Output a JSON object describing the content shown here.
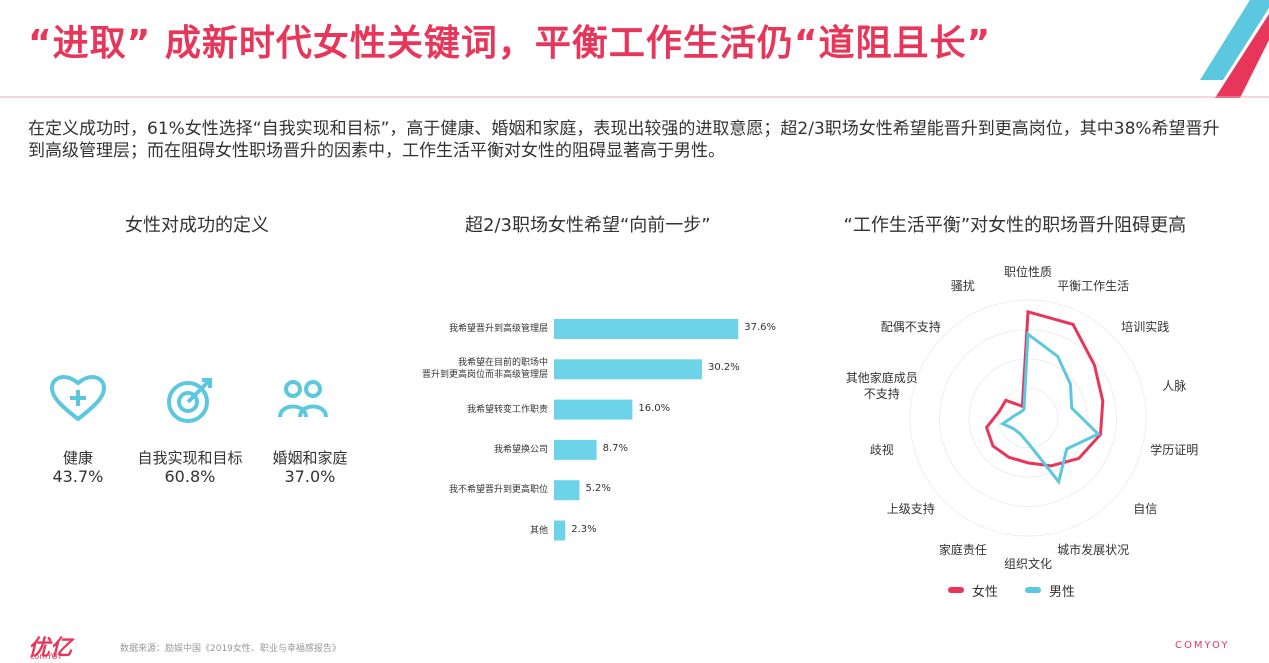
{
  "title": "“进取” 成新时代女性关键词，平衡工作生活仍“道阻且长”",
  "description": "在定义成功时，61%女性选择“自我实现和目标”，高于健康、婚姻和家庭，表现出较强的进取意愿；超2/3职场女性希望能晋升到更高岗位，其中38%希望晋升到高级管理层；而在阻碍女性职场晋升的因素中，工作生活平衡对女性的阻碍显著高于男性。",
  "footer": {
    "logo": "优亿",
    "logo_sub": "comYOY",
    "source": "数据来源：励娱中国《2019女性、职业与幸福感报告》",
    "brand": "COMYOY"
  },
  "chart_data": [
    {
      "type": "stat",
      "title": "女性对成功的定义",
      "color": "#5bc8e0",
      "categories": [
        "健康",
        "自我实现和目标",
        "婚姻和家庭"
      ],
      "values": [
        43.7,
        60.8,
        37.0
      ],
      "value_labels": [
        "43.7%",
        "60.8%",
        "37.0%"
      ]
    },
    {
      "type": "hbar",
      "title": "超2/3职场女性希望“向前一步”",
      "color": "#6dd3e8",
      "categories": [
        "我希望晋升到高级管理层",
        "我希望在目前的职场中\n晋升到更高岗位而非高级管理层",
        "我希望转变工作职责",
        "我希望换公司",
        "我不希望晋升到更高职位",
        "其他"
      ],
      "values": [
        37.6,
        30.2,
        16.0,
        8.7,
        5.2,
        2.3
      ],
      "value_labels": [
        "37.6%",
        "30.2%",
        "16.0%",
        "8.7%",
        "5.2%",
        "2.3%"
      ]
    },
    {
      "type": "radar",
      "title": "“工作生活平衡”对女性的职场晋升阻碍更高",
      "ylim": [
        0,
        100
      ],
      "grid": true,
      "categories": [
        "职位性质",
        "平衡工作生活",
        "培训实践",
        "人脉",
        "学历证明",
        "自信",
        "城市发展状况",
        "组织文化",
        "家庭责任",
        "上级支持",
        "歧视",
        "其他家庭成员\n不支持",
        "配偶不支持",
        "骚扰"
      ],
      "series": [
        {
          "name": "女性",
          "color": "#e8365a",
          "values": [
            90,
            88,
            72,
            65,
            63,
            55,
            45,
            38,
            37,
            38,
            36,
            25,
            24,
            11
          ]
        },
        {
          "name": "男性",
          "color": "#5bc8e0",
          "values": [
            71,
            58,
            46,
            38,
            61,
            42,
            60,
            21,
            15,
            15,
            22,
            11,
            8,
            8
          ]
        }
      ]
    }
  ]
}
